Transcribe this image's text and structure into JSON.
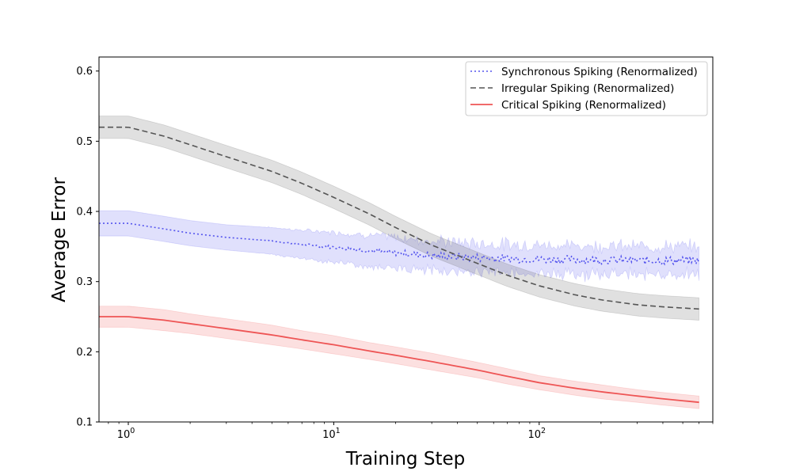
{
  "chart_data": {
    "type": "line",
    "title": "",
    "xlabel": "Training Step",
    "ylabel": "Average Error",
    "xscale": "log",
    "xlim": [
      0.72,
      700
    ],
    "ylim": [
      0.1,
      0.62
    ],
    "x_ticks": [
      {
        "value": 1,
        "base": "10",
        "exp": "0"
      },
      {
        "value": 10,
        "base": "10",
        "exp": "1"
      },
      {
        "value": 100,
        "base": "10",
        "exp": "2"
      }
    ],
    "y_ticks": [
      "0.1",
      "0.2",
      "0.3",
      "0.4",
      "0.5",
      "0.6"
    ],
    "y_tick_values": [
      0.1,
      0.2,
      0.3,
      0.4,
      0.5,
      0.6
    ],
    "grid": false,
    "legend_position": "upper right",
    "x": [
      0.72,
      1,
      1.5,
      2,
      3,
      5,
      7,
      10,
      15,
      20,
      30,
      50,
      70,
      100,
      150,
      200,
      300,
      400,
      600
    ],
    "series": [
      {
        "name": "Synchronous Spiking (Renormalized)",
        "color": "#5555ee",
        "line_style": "dotted",
        "noisy": true,
        "y": [
          0.383,
          0.383,
          0.375,
          0.369,
          0.363,
          0.358,
          0.353,
          0.349,
          0.344,
          0.341,
          0.337,
          0.334,
          0.333,
          0.332,
          0.331,
          0.331,
          0.33,
          0.33,
          0.33
        ],
        "band": [
          0.018,
          0.018,
          0.018,
          0.018,
          0.018,
          0.019,
          0.02,
          0.021,
          0.022,
          0.022,
          0.021,
          0.02,
          0.02,
          0.02,
          0.02,
          0.02,
          0.02,
          0.02,
          0.02
        ]
      },
      {
        "name": "Irregular Spiking (Renormalized)",
        "color": "#555555",
        "line_style": "dashed",
        "noisy": false,
        "y": [
          0.52,
          0.52,
          0.507,
          0.495,
          0.478,
          0.457,
          0.44,
          0.42,
          0.396,
          0.377,
          0.352,
          0.326,
          0.309,
          0.294,
          0.281,
          0.274,
          0.267,
          0.264,
          0.261
        ],
        "band": [
          0.016,
          0.016,
          0.016,
          0.016,
          0.016,
          0.016,
          0.016,
          0.016,
          0.016,
          0.016,
          0.016,
          0.016,
          0.016,
          0.016,
          0.016,
          0.016,
          0.016,
          0.016,
          0.016
        ]
      },
      {
        "name": "Critical Spiking (Renormalized)",
        "color": "#ee5555",
        "line_style": "solid",
        "noisy": false,
        "y": [
          0.25,
          0.25,
          0.245,
          0.24,
          0.233,
          0.224,
          0.217,
          0.21,
          0.201,
          0.195,
          0.186,
          0.174,
          0.165,
          0.156,
          0.148,
          0.143,
          0.137,
          0.133,
          0.128
        ],
        "band": [
          0.015,
          0.015,
          0.015,
          0.014,
          0.014,
          0.014,
          0.013,
          0.013,
          0.012,
          0.012,
          0.012,
          0.011,
          0.011,
          0.01,
          0.01,
          0.01,
          0.009,
          0.009,
          0.009
        ]
      }
    ]
  }
}
